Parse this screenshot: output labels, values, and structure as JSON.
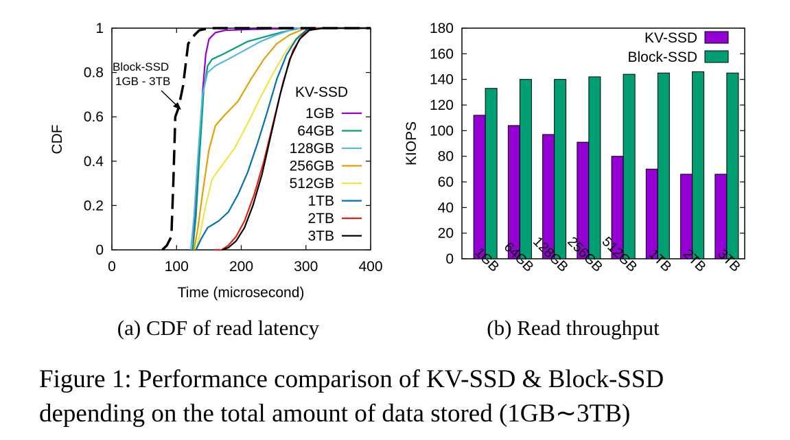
{
  "figure": {
    "subcaption_a": "(a) CDF of read latency",
    "subcaption_b": "(b) Read throughput",
    "caption_line1": "Figure 1: Performance comparison of KV-SSD & Block-SSD",
    "caption_line2": "depending on the total amount of data stored (1GB∼3TB)"
  },
  "chart_data": [
    {
      "type": "line",
      "title": "",
      "xlabel": "Time (microsecond)",
      "ylabel": "CDF",
      "xlim": [
        0,
        400
      ],
      "ylim": [
        0,
        1
      ],
      "xticks": [
        "0",
        "100",
        "200",
        "300",
        "400"
      ],
      "yticks": [
        "0",
        "0.2",
        "0.4",
        "0.6",
        "0.8",
        "1"
      ],
      "legend_title": "KV-SSD",
      "legend_position": "right",
      "annotation": {
        "line1": "Block-SSD",
        "line2": "1GB - 3TB",
        "target": "Block-SSD curve"
      },
      "series": [
        {
          "name": "1GB",
          "color": "#9400d3",
          "points": [
            [
              125,
              0
            ],
            [
              130,
              0.2
            ],
            [
              135,
              0.45
            ],
            [
              140,
              0.7
            ],
            [
              145,
              0.88
            ],
            [
              150,
              0.95
            ],
            [
              160,
              0.98
            ],
            [
              175,
              0.99
            ],
            [
              220,
              0.995
            ],
            [
              300,
              1
            ],
            [
              400,
              1
            ]
          ]
        },
        {
          "name": "64GB",
          "color": "#009e73",
          "points": [
            [
              125,
              0
            ],
            [
              130,
              0.15
            ],
            [
              135,
              0.4
            ],
            [
              142,
              0.72
            ],
            [
              148,
              0.83
            ],
            [
              155,
              0.86
            ],
            [
              170,
              0.88
            ],
            [
              190,
              0.91
            ],
            [
              210,
              0.94
            ],
            [
              235,
              0.96
            ],
            [
              260,
              0.98
            ],
            [
              290,
              1
            ],
            [
              400,
              1
            ]
          ]
        },
        {
          "name": "128GB",
          "color": "#56b4e9",
          "points": [
            [
              122,
              0
            ],
            [
              127,
              0.15
            ],
            [
              133,
              0.42
            ],
            [
              140,
              0.7
            ],
            [
              148,
              0.8
            ],
            [
              160,
              0.83
            ],
            [
              180,
              0.86
            ],
            [
              205,
              0.9
            ],
            [
              230,
              0.94
            ],
            [
              255,
              0.97
            ],
            [
              285,
              1
            ],
            [
              400,
              1
            ]
          ]
        },
        {
          "name": "256GB",
          "color": "#e69f00",
          "points": [
            [
              127,
              0
            ],
            [
              133,
              0.1
            ],
            [
              140,
              0.25
            ],
            [
              150,
              0.45
            ],
            [
              160,
              0.56
            ],
            [
              175,
              0.61
            ],
            [
              195,
              0.67
            ],
            [
              215,
              0.77
            ],
            [
              235,
              0.86
            ],
            [
              255,
              0.93
            ],
            [
              275,
              0.97
            ],
            [
              300,
              1
            ],
            [
              400,
              1
            ]
          ]
        },
        {
          "name": "512GB",
          "color": "#f0e442",
          "points": [
            [
              130,
              0
            ],
            [
              137,
              0.08
            ],
            [
              145,
              0.2
            ],
            [
              155,
              0.32
            ],
            [
              170,
              0.38
            ],
            [
              190,
              0.46
            ],
            [
              210,
              0.57
            ],
            [
              230,
              0.69
            ],
            [
              250,
              0.8
            ],
            [
              270,
              0.9
            ],
            [
              290,
              0.97
            ],
            [
              310,
              1
            ],
            [
              360,
              1
            ],
            [
              400,
              1
            ]
          ]
        },
        {
          "name": "1TB",
          "color": "#0072b2",
          "points": [
            [
              130,
              0
            ],
            [
              138,
              0.05
            ],
            [
              148,
              0.1
            ],
            [
              165,
              0.13
            ],
            [
              180,
              0.17
            ],
            [
              195,
              0.25
            ],
            [
              210,
              0.35
            ],
            [
              225,
              0.48
            ],
            [
              240,
              0.62
            ],
            [
              255,
              0.77
            ],
            [
              270,
              0.88
            ],
            [
              285,
              0.95
            ],
            [
              300,
              0.99
            ],
            [
              330,
              1
            ],
            [
              400,
              1
            ]
          ]
        },
        {
          "name": "2TB",
          "color": "#e51e10",
          "points": [
            [
              158,
              0
            ],
            [
              170,
              0
            ],
            [
              180,
              0.02
            ],
            [
              192,
              0.06
            ],
            [
              205,
              0.13
            ],
            [
              220,
              0.25
            ],
            [
              235,
              0.4
            ],
            [
              250,
              0.58
            ],
            [
              265,
              0.76
            ],
            [
              280,
              0.9
            ],
            [
              295,
              0.97
            ],
            [
              310,
              1
            ],
            [
              350,
              1
            ],
            [
              400,
              1
            ]
          ]
        },
        {
          "name": "3TB",
          "color": "#000000",
          "points": [
            [
              170,
              0
            ],
            [
              180,
              0.01
            ],
            [
              192,
              0.04
            ],
            [
              205,
              0.1
            ],
            [
              218,
              0.2
            ],
            [
              232,
              0.34
            ],
            [
              246,
              0.52
            ],
            [
              260,
              0.7
            ],
            [
              275,
              0.86
            ],
            [
              290,
              0.95
            ],
            [
              305,
              0.99
            ],
            [
              325,
              1
            ],
            [
              400,
              1
            ]
          ]
        },
        {
          "name": "Block-SSD",
          "color": "#000000",
          "dashed": true,
          "points": [
            [
              78,
              0
            ],
            [
              85,
              0.02
            ],
            [
              92,
              0.06
            ],
            [
              95,
              0.3
            ],
            [
              98,
              0.6
            ],
            [
              103,
              0.64
            ],
            [
              110,
              0.74
            ],
            [
              118,
              0.93
            ],
            [
              128,
              0.97
            ],
            [
              135,
              0.99
            ],
            [
              150,
              1
            ],
            [
              400,
              1
            ]
          ]
        }
      ]
    },
    {
      "type": "bar",
      "title": "",
      "xlabel": "",
      "ylabel": "KIOPS",
      "ylim": [
        0,
        180
      ],
      "yticks": [
        "0",
        "20",
        "40",
        "60",
        "80",
        "100",
        "120",
        "140",
        "160",
        "180"
      ],
      "categories": [
        "1GB",
        "64GB",
        "128GB",
        "256GB",
        "512GB",
        "1TB",
        "2TB",
        "3TB"
      ],
      "legend_position": "top-right",
      "series": [
        {
          "name": "KV-SSD",
          "color": "#9400d3",
          "values": [
            112,
            104,
            97,
            91,
            80,
            70,
            66,
            66
          ]
        },
        {
          "name": "Block-SSD",
          "color": "#009e73",
          "values": [
            133,
            140,
            140,
            142,
            144,
            145,
            146,
            145
          ]
        }
      ]
    }
  ]
}
